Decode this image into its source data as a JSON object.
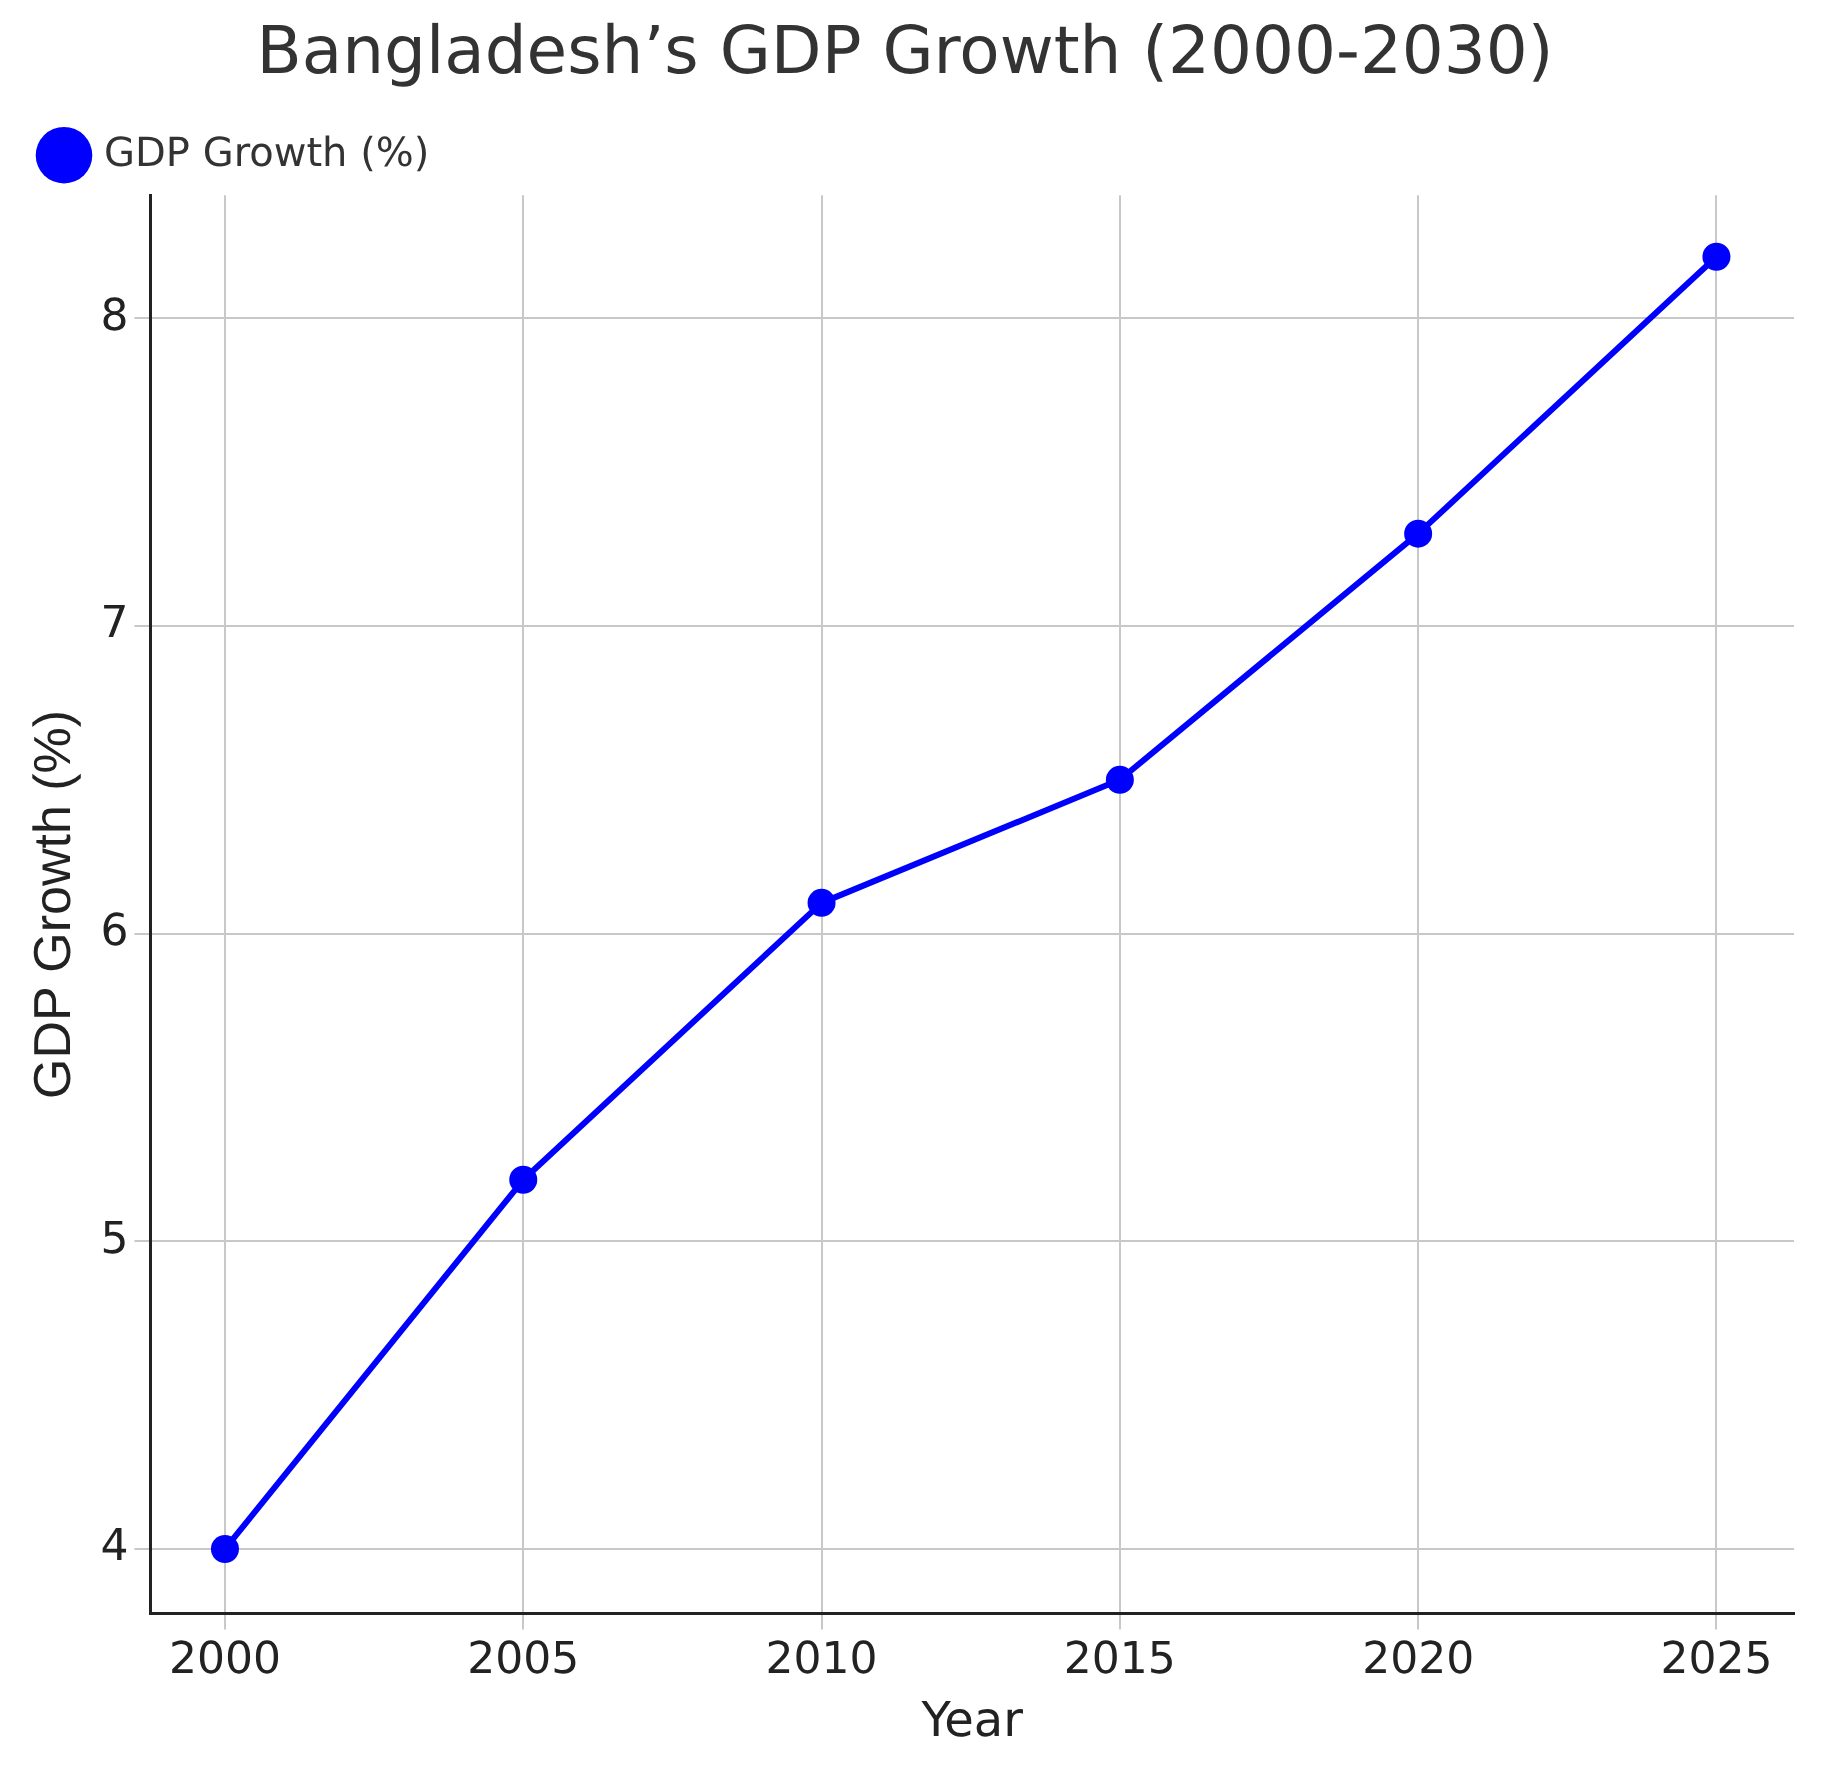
{
  "chart_data": {
    "type": "line",
    "title": "Bangladesh’s GDP Growth (2000-2030)",
    "xlabel": "Year",
    "ylabel": "GDP Growth (%)",
    "x": [
      2000,
      2005,
      2010,
      2015,
      2020,
      2025
    ],
    "series": [
      {
        "name": "GDP Growth (%)",
        "color": "#0000ff",
        "values": [
          4.0,
          5.2,
          6.1,
          6.5,
          7.3,
          8.2
        ]
      }
    ],
    "xlim": [
      1998.75,
      2026.3
    ],
    "xticks": [
      2000,
      2005,
      2010,
      2015,
      2020,
      2025
    ],
    "ylim": [
      3.79,
      8.4
    ],
    "yticks": [
      4,
      5,
      6,
      7,
      8
    ],
    "grid": true,
    "legend": "top left",
    "marker": "circle",
    "line_style": "solid"
  }
}
